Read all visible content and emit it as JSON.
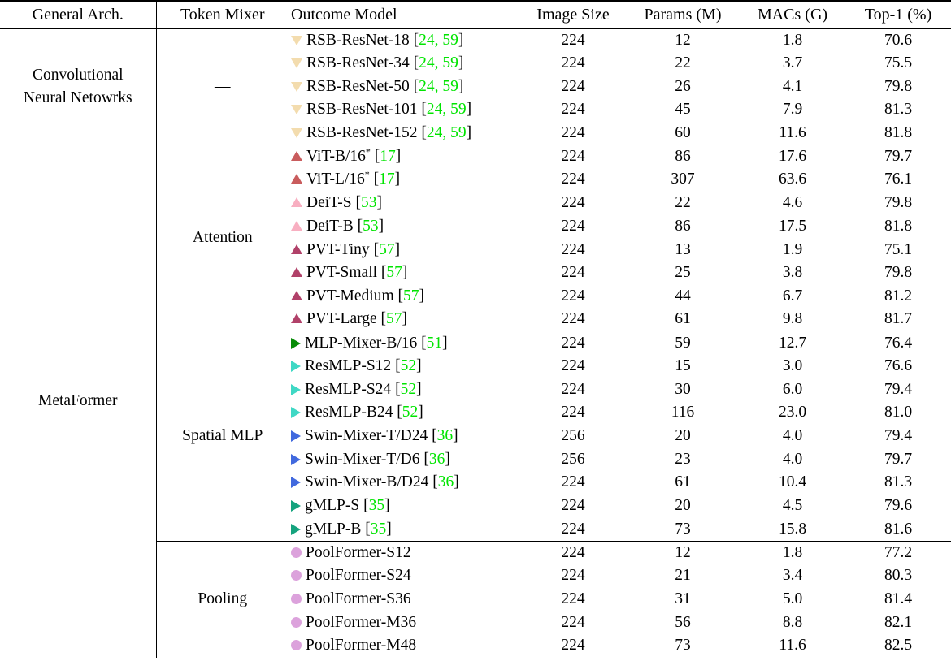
{
  "page": {
    "background": "#FFFFFF",
    "text_color": "#000000",
    "rule_color": "#000000"
  },
  "colors": {
    "citation": "#00E400"
  },
  "table": {
    "columns": [
      "General Arch.",
      "Token Mixer",
      "Outcome Model",
      "Image Size",
      "Params (M)",
      "MACs (G)",
      "Top-1 (%)"
    ],
    "arch_groups": [
      {
        "arch_lines": [
          "Convolutional",
          "Neural Netowrks"
        ],
        "mixer_groups": [
          {
            "mixer": "—",
            "rows": [
              {
                "marker": "down",
                "color": "#F3DCAE",
                "model": "RSB-ResNet-18",
                "cite": "24, 59",
                "size": "224",
                "params": "12",
                "macs": "1.8",
                "top1": "70.6"
              },
              {
                "marker": "down",
                "color": "#F3DCAE",
                "model": "RSB-ResNet-34",
                "cite": "24, 59",
                "size": "224",
                "params": "22",
                "macs": "3.7",
                "top1": "75.5"
              },
              {
                "marker": "down",
                "color": "#F3DCAE",
                "model": "RSB-ResNet-50",
                "cite": "24, 59",
                "size": "224",
                "params": "26",
                "macs": "4.1",
                "top1": "79.8"
              },
              {
                "marker": "down",
                "color": "#F3DCAE",
                "model": "RSB-ResNet-101",
                "cite": "24, 59",
                "size": "224",
                "params": "45",
                "macs": "7.9",
                "top1": "81.3"
              },
              {
                "marker": "down",
                "color": "#F3DCAE",
                "model": "RSB-ResNet-152",
                "cite": "24, 59",
                "size": "224",
                "params": "60",
                "macs": "11.6",
                "top1": "81.8"
              }
            ]
          }
        ]
      },
      {
        "arch_lines": [
          "MetaFormer"
        ],
        "mixer_groups": [
          {
            "mixer": "Attention",
            "rows": [
              {
                "marker": "up",
                "color": "#C95C5D",
                "model": "ViT-B/16",
                "sup": "*",
                "cite": "17",
                "size": "224",
                "params": "86",
                "macs": "17.6",
                "top1": "79.7"
              },
              {
                "marker": "up",
                "color": "#C95C5D",
                "model": "ViT-L/16",
                "sup": "*",
                "cite": "17",
                "size": "224",
                "params": "307",
                "macs": "63.6",
                "top1": "76.1"
              },
              {
                "marker": "up",
                "color": "#F8AFC1",
                "model": "DeiT-S",
                "cite": "53",
                "size": "224",
                "params": "22",
                "macs": "4.6",
                "top1": "79.8"
              },
              {
                "marker": "up",
                "color": "#F8AFC1",
                "model": "DeiT-B",
                "cite": "53",
                "size": "224",
                "params": "86",
                "macs": "17.5",
                "top1": "81.8"
              },
              {
                "marker": "up",
                "color": "#B14169",
                "model": "PVT-Tiny",
                "cite": "57",
                "size": "224",
                "params": "13",
                "macs": "1.9",
                "top1": "75.1"
              },
              {
                "marker": "up",
                "color": "#B14169",
                "model": "PVT-Small",
                "cite": "57",
                "size": "224",
                "params": "25",
                "macs": "3.8",
                "top1": "79.8"
              },
              {
                "marker": "up",
                "color": "#B14169",
                "model": "PVT-Medium",
                "cite": "57",
                "size": "224",
                "params": "44",
                "macs": "6.7",
                "top1": "81.2"
              },
              {
                "marker": "up",
                "color": "#B14169",
                "model": "PVT-Large",
                "cite": "57",
                "size": "224",
                "params": "61",
                "macs": "9.8",
                "top1": "81.7"
              }
            ]
          },
          {
            "mixer": "Spatial MLP",
            "rows": [
              {
                "marker": "right",
                "color": "#078C07",
                "model": "MLP-Mixer-B/16",
                "cite": "51",
                "size": "224",
                "params": "59",
                "macs": "12.7",
                "top1": "76.4"
              },
              {
                "marker": "right",
                "color": "#3FD8C5",
                "model": "ResMLP-S12",
                "cite": "52",
                "size": "224",
                "params": "15",
                "macs": "3.0",
                "top1": "76.6"
              },
              {
                "marker": "right",
                "color": "#3FD8C5",
                "model": "ResMLP-S24",
                "cite": "52",
                "size": "224",
                "params": "30",
                "macs": "6.0",
                "top1": "79.4"
              },
              {
                "marker": "right",
                "color": "#3FD8C5",
                "model": "ResMLP-B24",
                "cite": "52",
                "size": "224",
                "params": "116",
                "macs": "23.0",
                "top1": "81.0"
              },
              {
                "marker": "right",
                "color": "#4169DE",
                "model": "Swin-Mixer-T/D24",
                "cite": "36",
                "size": "256",
                "params": "20",
                "macs": "4.0",
                "top1": "79.4"
              },
              {
                "marker": "right",
                "color": "#4169DE",
                "model": "Swin-Mixer-T/D6",
                "cite": "36",
                "size": "256",
                "params": "23",
                "macs": "4.0",
                "top1": "79.7"
              },
              {
                "marker": "right",
                "color": "#4169DE",
                "model": "Swin-Mixer-B/D24",
                "cite": "36",
                "size": "224",
                "params": "61",
                "macs": "10.4",
                "top1": "81.3"
              },
              {
                "marker": "right",
                "color": "#15A37E",
                "model": "gMLP-S",
                "cite": "35",
                "size": "224",
                "params": "20",
                "macs": "4.5",
                "top1": "79.6"
              },
              {
                "marker": "right",
                "color": "#15A37E",
                "model": "gMLP-B",
                "cite": "35",
                "size": "224",
                "params": "73",
                "macs": "15.8",
                "top1": "81.6"
              }
            ]
          },
          {
            "mixer": "Pooling",
            "rows": [
              {
                "marker": "circle",
                "color": "#DCA2DC",
                "model": "PoolFormer-S12",
                "size": "224",
                "params": "12",
                "macs": "1.8",
                "top1": "77.2"
              },
              {
                "marker": "circle",
                "color": "#DCA2DC",
                "model": "PoolFormer-S24",
                "size": "224",
                "params": "21",
                "macs": "3.4",
                "top1": "80.3"
              },
              {
                "marker": "circle",
                "color": "#DCA2DC",
                "model": "PoolFormer-S36",
                "size": "224",
                "params": "31",
                "macs": "5.0",
                "top1": "81.4"
              },
              {
                "marker": "circle",
                "color": "#DCA2DC",
                "model": "PoolFormer-M36",
                "size": "224",
                "params": "56",
                "macs": "8.8",
                "top1": "82.1"
              },
              {
                "marker": "circle",
                "color": "#DCA2DC",
                "model": "PoolFormer-M48",
                "size": "224",
                "params": "73",
                "macs": "11.6",
                "top1": "82.5"
              }
            ]
          }
        ]
      }
    ]
  }
}
